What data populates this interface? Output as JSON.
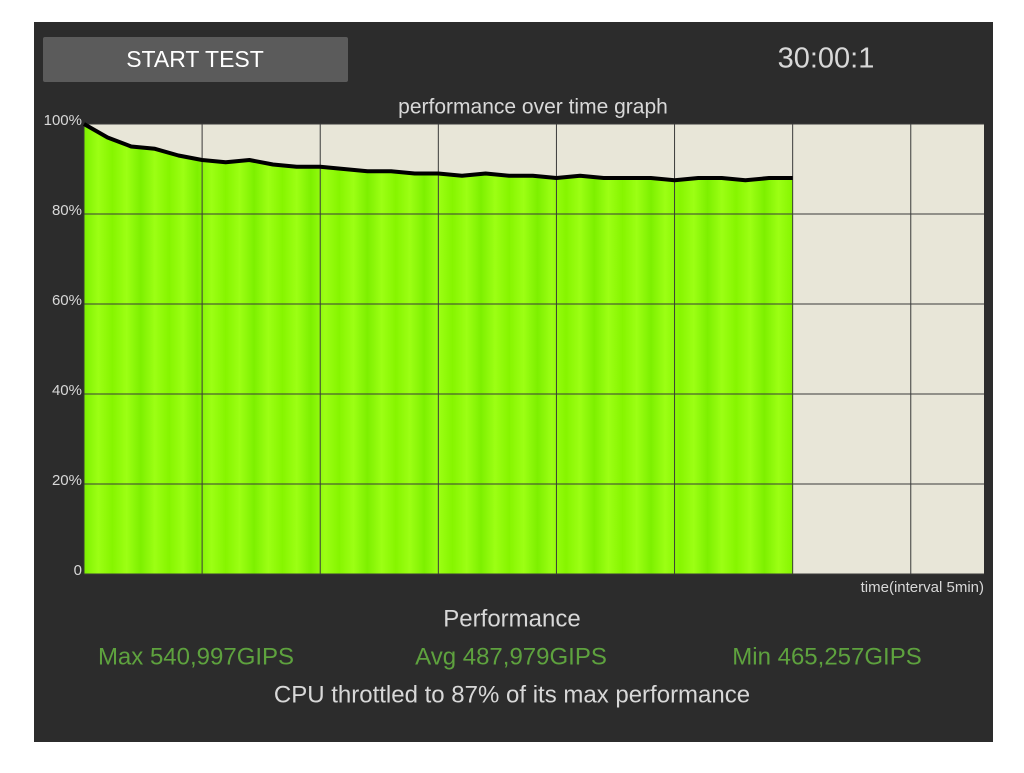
{
  "button": "START TEST",
  "timer": "30:00:1",
  "chart_data": {
    "type": "line",
    "title": "performance over time graph",
    "x_label": "time(interval 5min)",
    "x": [
      0,
      1,
      2,
      3,
      4,
      5,
      6,
      7,
      8,
      9,
      10,
      11,
      12,
      13,
      14,
      15,
      16,
      17,
      18,
      19,
      20,
      21,
      22,
      23,
      24,
      25,
      26,
      27,
      28,
      29,
      30
    ],
    "series": [
      {
        "color": "#000000",
        "fill": "#8cf500",
        "values": [
          100,
          97,
          95,
          94.5,
          93,
          92,
          91.5,
          92,
          91,
          90.5,
          90.5,
          90,
          89.5,
          89.5,
          89,
          89,
          88.5,
          89,
          88.5,
          88.5,
          88,
          88.5,
          88,
          88,
          88,
          87.5,
          88,
          88,
          87.5,
          88,
          88
        ]
      }
    ],
    "xlim": [
      0,
      38.1
    ],
    "xticks": [
      0,
      5,
      10,
      15,
      20,
      25,
      30,
      35
    ],
    "ylim": [
      0,
      100
    ],
    "yticks": [
      0,
      {
        "value": 20,
        "label": "20%"
      },
      {
        "value": 40,
        "label": "40%"
      },
      {
        "value": 60,
        "label": "60%"
      },
      {
        "value": 80,
        "label": "80%"
      },
      {
        "value": 100,
        "label": "100%"
      }
    ],
    "grid": true
  },
  "stats": {
    "heading": "Performance",
    "max": "Max 540,997GIPS",
    "avg": "Avg 487,979GIPS",
    "min": "Min 465,257GIPS",
    "summary": "CPU throttled to 87% of its max performance"
  }
}
